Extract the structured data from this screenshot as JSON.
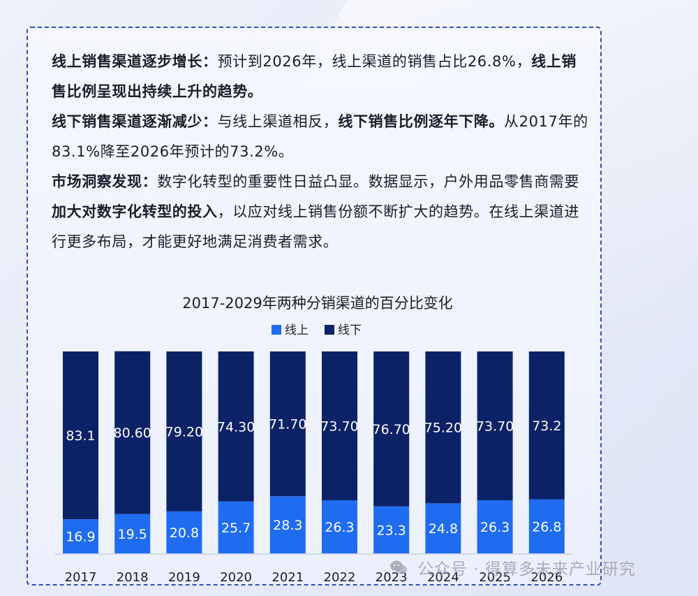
{
  "paragraphs": [
    {
      "segments": [
        {
          "text": "线上销售渠道逐步增长：",
          "bold": true
        },
        {
          "text": "预计到2026年，线上渠道的销售占比26.8%，",
          "bold": false
        },
        {
          "text": "线上销售比例呈现出持续上升的趋势。",
          "bold": true
        }
      ]
    },
    {
      "segments": [
        {
          "text": "线下销售渠道逐渐减少：",
          "bold": true
        },
        {
          "text": "与线上渠道相反，",
          "bold": false
        },
        {
          "text": "线下销售比例逐年下降。",
          "bold": true
        },
        {
          "text": "从2017年的83.1%降至2026年预计的73.2%。",
          "bold": false
        }
      ]
    },
    {
      "segments": [
        {
          "text": "市场洞察发现：",
          "bold": true
        },
        {
          "text": "数字化转型的重要性日益凸显。数据显示，户外用品零售商需要",
          "bold": false
        },
        {
          "text": "加大对数字化转型的投入",
          "bold": true
        },
        {
          "text": "，以应对线上销售份额不断扩大的趋势。在线上渠道进行更多布局，才能更好地满足消费者需求。",
          "bold": false
        }
      ]
    }
  ],
  "watermark": "公众号 · 得算多未来产业研究",
  "colors": {
    "online": "#1f6cf0",
    "offline": "#0c2266",
    "border": "#2f4fb5"
  },
  "chart_data": {
    "type": "bar",
    "stacked": true,
    "title": "2017-2029年两种分销渠道的百分比变化",
    "legend_position": "top-center",
    "categories": [
      "2017",
      "2018",
      "2019",
      "2020",
      "2021",
      "2022",
      "2023",
      "2024",
      "2025",
      "2026"
    ],
    "series": [
      {
        "name": "线上",
        "values": [
          16.9,
          19.5,
          20.8,
          25.7,
          28.3,
          26.3,
          23.3,
          24.8,
          26.3,
          26.8
        ],
        "labels": [
          "16.9",
          "19.5",
          "20.8",
          "25.7",
          "28.3",
          "26.3",
          "23.3",
          "24.8",
          "26.3",
          "26.8"
        ]
      },
      {
        "name": "线下",
        "values": [
          83.1,
          80.6,
          79.2,
          74.3,
          71.7,
          73.7,
          76.7,
          75.2,
          73.7,
          73.2
        ],
        "labels": [
          "83.1",
          "80.60",
          "79.20",
          "74.30",
          "71.70",
          "73.70",
          "76.70",
          "75.20",
          "73.70",
          "73.2"
        ]
      }
    ],
    "ylim": [
      0,
      100
    ],
    "grid": false
  }
}
